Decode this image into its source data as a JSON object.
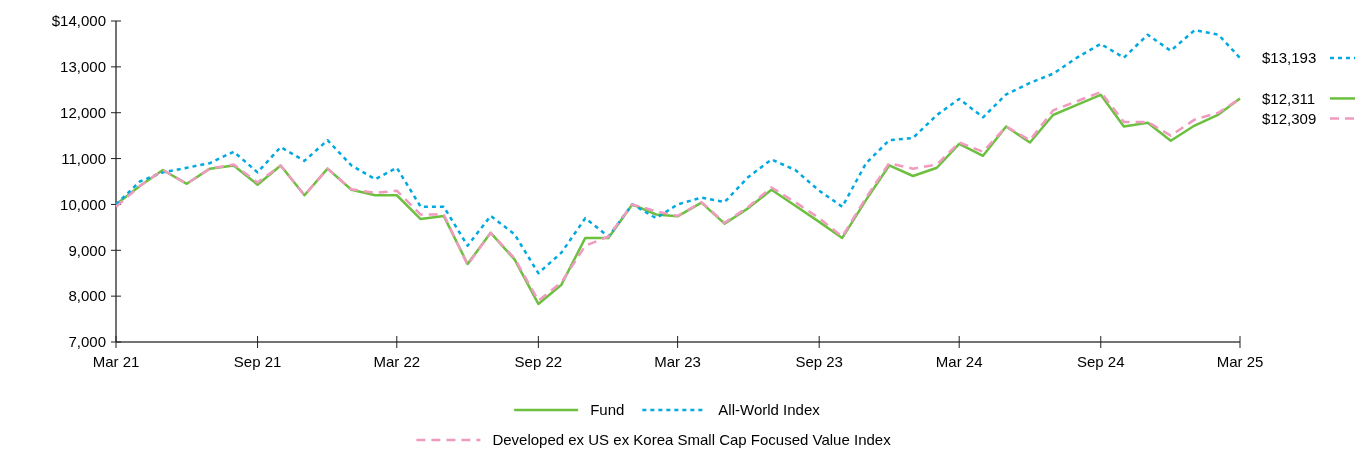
{
  "chart_data": {
    "type": "line",
    "x": [
      "2021-03",
      "2021-04",
      "2021-05",
      "2021-06",
      "2021-07",
      "2021-08",
      "2021-09",
      "2021-10",
      "2021-11",
      "2021-12",
      "2022-01",
      "2022-02",
      "2022-03",
      "2022-04",
      "2022-05",
      "2022-06",
      "2022-07",
      "2022-08",
      "2022-09",
      "2022-10",
      "2022-11",
      "2022-12",
      "2023-01",
      "2023-02",
      "2023-03",
      "2023-04",
      "2023-05",
      "2023-06",
      "2023-07",
      "2023-08",
      "2023-09",
      "2023-10",
      "2023-11",
      "2023-12",
      "2024-01",
      "2024-02",
      "2024-03",
      "2024-04",
      "2024-05",
      "2024-06",
      "2024-07",
      "2024-08",
      "2024-09",
      "2024-10",
      "2024-11",
      "2024-12",
      "2025-01",
      "2025-02",
      "2025-03"
    ],
    "series": [
      {
        "name": "Fund",
        "color": "#6dbf3f",
        "line_style": "solid",
        "values": [
          10000,
          10400,
          10750,
          10450,
          10780,
          10850,
          10430,
          10850,
          10200,
          10780,
          10320,
          10200,
          10200,
          9680,
          9750,
          8700,
          9380,
          8800,
          7830,
          8250,
          9270,
          9270,
          10000,
          9780,
          9740,
          10040,
          9580,
          9920,
          10320,
          9970,
          9620,
          9270,
          10100,
          10850,
          10620,
          10800,
          11320,
          11060,
          11700,
          11350,
          11950,
          12170,
          12390,
          11700,
          11780,
          11390,
          11720,
          11960,
          12311
        ],
        "value_labels": [
          null,
          null,
          null,
          null,
          null,
          null,
          null,
          null,
          null,
          null,
          null,
          null,
          null,
          null,
          null,
          null,
          null,
          null,
          null,
          null,
          null,
          null,
          null,
          null,
          null,
          null,
          null,
          null,
          null,
          null,
          null,
          null,
          null,
          null,
          null,
          null,
          null,
          null,
          null,
          null,
          null,
          null,
          null,
          null,
          null,
          null,
          null,
          null,
          "$12,311"
        ]
      },
      {
        "name": "All-World Index",
        "color": "#00a9e0",
        "line_style": "dotted",
        "values": [
          10000,
          10500,
          10700,
          10800,
          10900,
          11150,
          10700,
          11250,
          10950,
          11400,
          10850,
          10550,
          10800,
          9950,
          9950,
          9100,
          9750,
          9350,
          8500,
          8950,
          9700,
          9300,
          10000,
          9700,
          10000,
          10150,
          10050,
          10600,
          10980,
          10750,
          10300,
          9950,
          10900,
          11400,
          11450,
          11950,
          12300,
          11900,
          12400,
          12650,
          12850,
          13200,
          13500,
          13200,
          13700,
          13350,
          13800,
          13700,
          13193
        ],
        "value_labels": [
          null,
          null,
          null,
          null,
          null,
          null,
          null,
          null,
          null,
          null,
          null,
          null,
          null,
          null,
          null,
          null,
          null,
          null,
          null,
          null,
          null,
          null,
          null,
          null,
          null,
          null,
          null,
          null,
          null,
          null,
          null,
          null,
          null,
          null,
          null,
          null,
          null,
          null,
          null,
          null,
          null,
          null,
          null,
          null,
          null,
          null,
          null,
          null,
          "$13,193"
        ]
      },
      {
        "name": "Developed ex US ex Korea Small Cap Focused Value Index",
        "color": "#f09ac0",
        "line_style": "dashed",
        "values": [
          9950,
          10400,
          10750,
          10450,
          10780,
          10870,
          10480,
          10850,
          10200,
          10780,
          10330,
          10250,
          10300,
          9780,
          9780,
          8680,
          9380,
          8830,
          7900,
          8300,
          9100,
          9300,
          10000,
          9850,
          9750,
          10050,
          9600,
          9950,
          10370,
          10050,
          9700,
          9300,
          10150,
          10900,
          10780,
          10870,
          11350,
          11150,
          11700,
          11400,
          12050,
          12250,
          12450,
          11800,
          11800,
          11500,
          11850,
          12000,
          12309
        ],
        "value_labels": [
          null,
          null,
          null,
          null,
          null,
          null,
          null,
          null,
          null,
          null,
          null,
          null,
          null,
          null,
          null,
          null,
          null,
          null,
          null,
          null,
          null,
          null,
          null,
          null,
          null,
          null,
          null,
          null,
          null,
          null,
          null,
          null,
          null,
          null,
          null,
          null,
          null,
          null,
          null,
          null,
          null,
          null,
          null,
          null,
          null,
          null,
          null,
          null,
          "$12,309"
        ]
      }
    ],
    "xlim": [
      "2021-03",
      "2025-03"
    ],
    "xticks": [
      {
        "value": "2021-03",
        "label": "Mar 21"
      },
      {
        "value": "2021-09",
        "label": "Sep 21"
      },
      {
        "value": "2022-03",
        "label": "Mar 22"
      },
      {
        "value": "2022-09",
        "label": "Sep 22"
      },
      {
        "value": "2023-03",
        "label": "Mar 23"
      },
      {
        "value": "2023-09",
        "label": "Sep 23"
      },
      {
        "value": "2024-03",
        "label": "Mar 24"
      },
      {
        "value": "2024-09",
        "label": "Sep 24"
      },
      {
        "value": "2025-03",
        "label": "Mar 25"
      }
    ],
    "ylim": [
      7000,
      14000
    ],
    "yticks": [
      {
        "value": 7000,
        "label": "7,000"
      },
      {
        "value": 8000,
        "label": "8,000"
      },
      {
        "value": 9000,
        "label": "9,000"
      },
      {
        "value": 10000,
        "label": "10,000"
      },
      {
        "value": 11000,
        "label": "11,000"
      },
      {
        "value": 12000,
        "label": "12,000"
      },
      {
        "value": 13000,
        "label": "13,000"
      },
      {
        "value": 14000,
        "label": "$14,000"
      }
    ],
    "grid": false,
    "legend": "bottom"
  }
}
